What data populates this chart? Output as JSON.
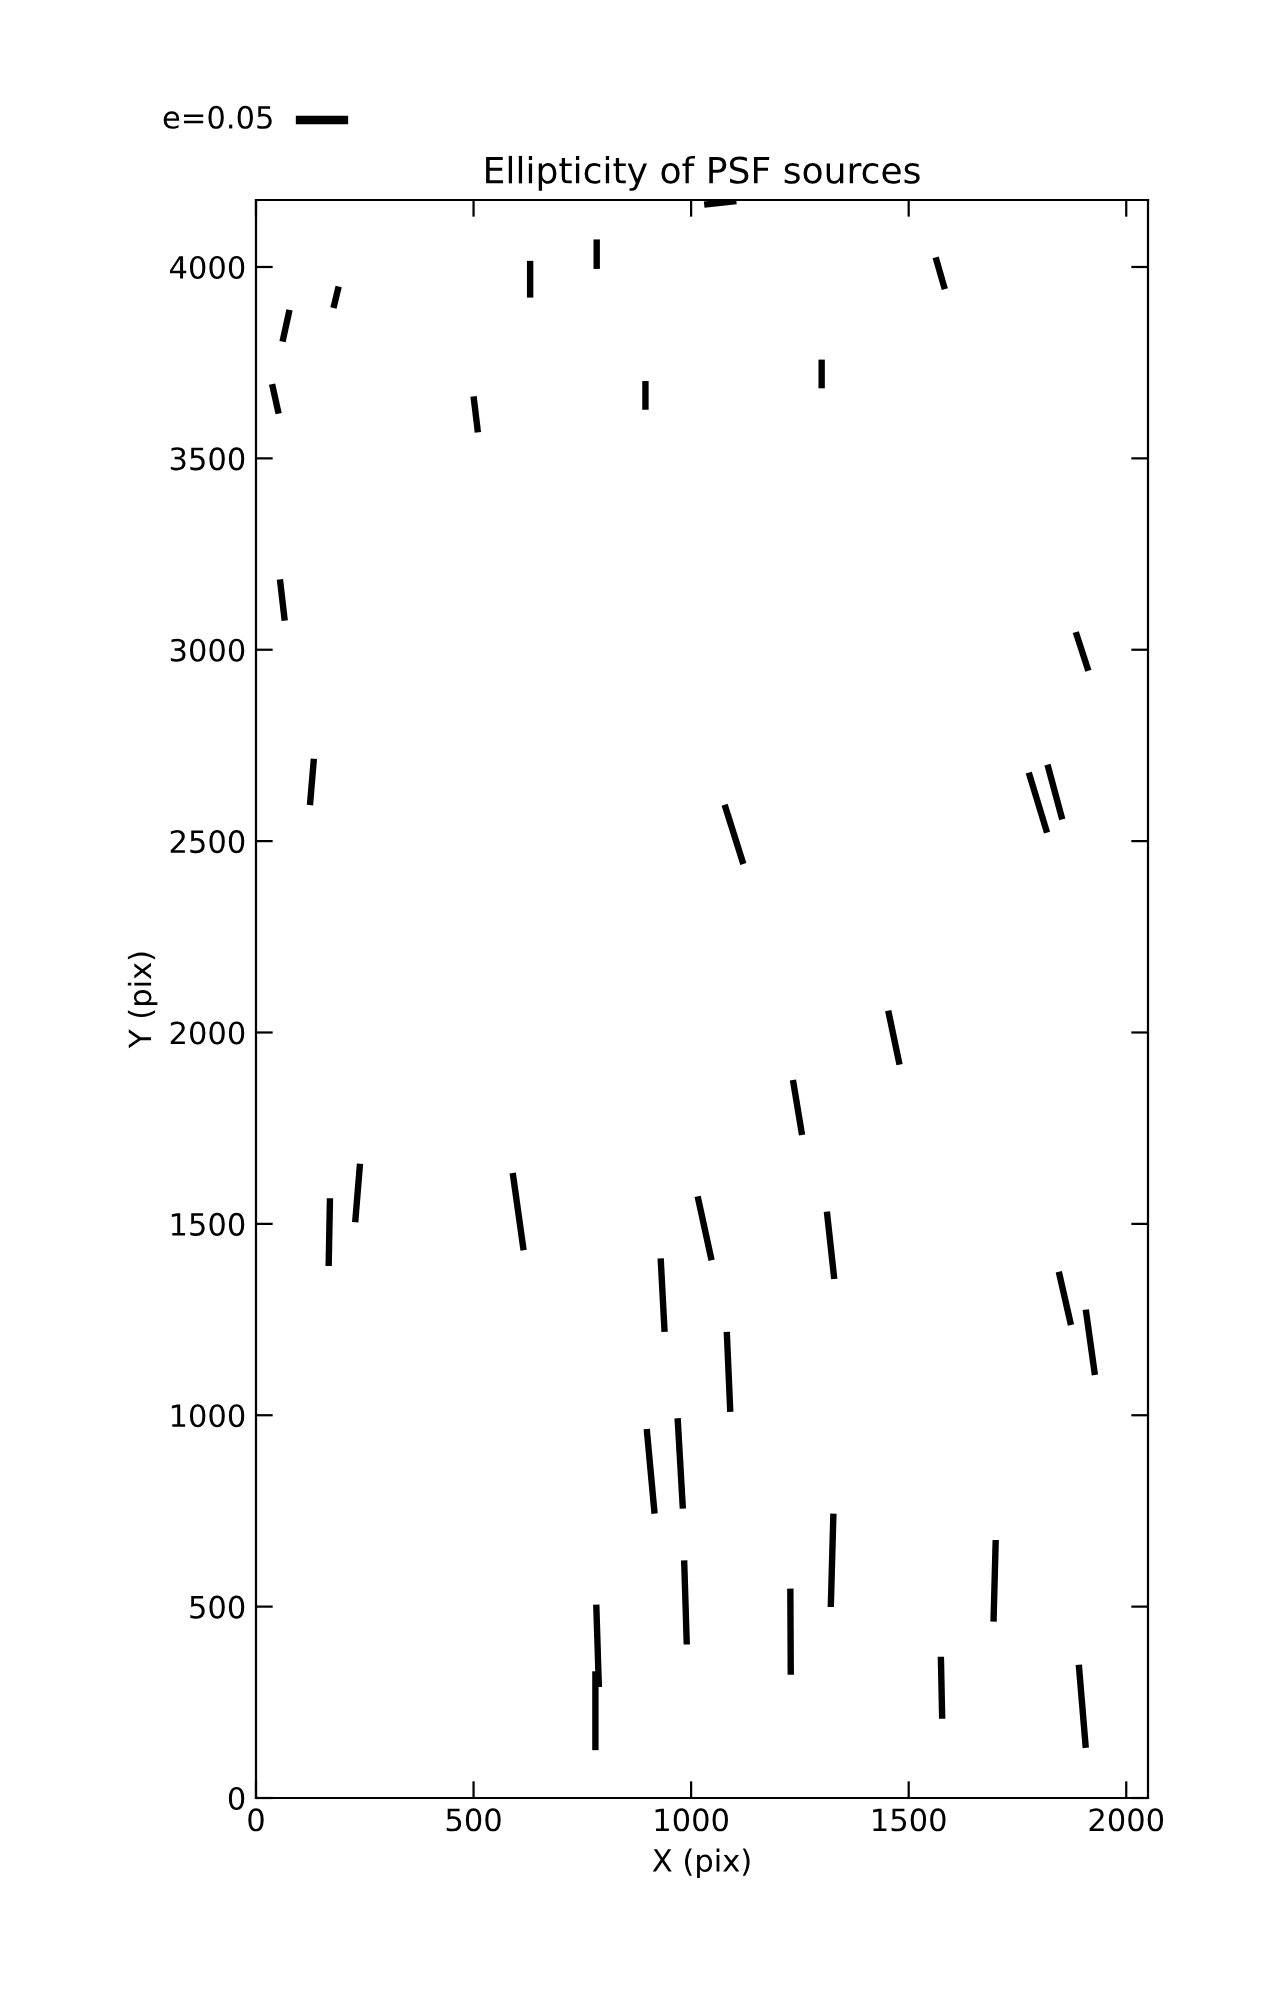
{
  "chart_data": {
    "type": "line",
    "title": "Ellipticity of PSF sources",
    "xlabel": "X (pix)",
    "ylabel": "Y (pix)",
    "annotations": [
      "e=0.05"
    ],
    "xlim": [
      0,
      2050
    ],
    "xticks": [
      0,
      500,
      1000,
      1500,
      2000
    ],
    "ylim": [
      0,
      4175
    ],
    "yticks": [
      0,
      500,
      1000,
      1500,
      2000,
      2500,
      3000,
      3500,
      4000
    ],
    "grid": false,
    "legend": false,
    "marker": "none",
    "line_style": "solid",
    "series": [
      {
        "color": "#000000",
        "x": [
          1562,
          1583
        ],
        "values": [
          4025,
          3942
        ]
      },
      {
        "color": "#000000",
        "x": [
          630,
          630
        ],
        "values": [
          4016,
          3920
        ]
      },
      {
        "color": "#000000",
        "x": [
          783,
          783
        ],
        "values": [
          4072,
          3995
        ]
      },
      {
        "color": "#000000",
        "x": [
          190,
          178
        ],
        "values": [
          3949,
          3893
        ]
      },
      {
        "color": "#000000",
        "x": [
          77,
          61
        ],
        "values": [
          3888,
          3805
        ]
      },
      {
        "color": "#000000",
        "x": [
          37,
          52
        ],
        "values": [
          3694,
          3617
        ]
      },
      {
        "color": "#000000",
        "x": [
          500,
          510
        ],
        "values": [
          3662,
          3568
        ]
      },
      {
        "color": "#000000",
        "x": [
          895,
          895
        ],
        "values": [
          3702,
          3627
        ]
      },
      {
        "color": "#000000",
        "x": [
          1300,
          1300
        ],
        "values": [
          3758,
          3683
        ]
      },
      {
        "color": "#000000",
        "x": [
          1030,
          1104
        ],
        "values": [
          4163,
          4172
        ]
      },
      {
        "color": "#000000",
        "x": [
          55,
          66
        ],
        "values": [
          3184,
          3076
        ]
      },
      {
        "color": "#000000",
        "x": [
          1884,
          1913
        ],
        "values": [
          3046,
          2945
        ]
      },
      {
        "color": "#000000",
        "x": [
          133,
          124
        ],
        "values": [
          2715,
          2594
        ]
      },
      {
        "color": "#000000",
        "x": [
          1077,
          1120
        ],
        "values": [
          2595,
          2440
        ]
      },
      {
        "color": "#000000",
        "x": [
          1776,
          1818
        ],
        "values": [
          2679,
          2522
        ]
      },
      {
        "color": "#000000",
        "x": [
          1819,
          1853
        ],
        "values": [
          2700,
          2557
        ]
      },
      {
        "color": "#000000",
        "x": [
          170,
          167
        ],
        "values": [
          1567,
          1390
        ]
      },
      {
        "color": "#000000",
        "x": [
          239,
          228
        ],
        "values": [
          1657,
          1504
        ]
      },
      {
        "color": "#000000",
        "x": [
          590,
          615
        ],
        "values": [
          1633,
          1431
        ]
      },
      {
        "color": "#000000",
        "x": [
          930,
          939
        ],
        "values": [
          1410,
          1218
        ]
      },
      {
        "color": "#000000",
        "x": [
          1015,
          1047
        ],
        "values": [
          1572,
          1405
        ]
      },
      {
        "color": "#000000",
        "x": [
          1234,
          1255
        ],
        "values": [
          1876,
          1732
        ]
      },
      {
        "color": "#000000",
        "x": [
          1312,
          1329
        ],
        "values": [
          1532,
          1356
        ]
      },
      {
        "color": "#000000",
        "x": [
          1453,
          1479
        ],
        "values": [
          2057,
          1916
        ]
      },
      {
        "color": "#000000",
        "x": [
          1845,
          1873
        ],
        "values": [
          1375,
          1236
        ]
      },
      {
        "color": "#000000",
        "x": [
          1907,
          1928
        ],
        "values": [
          1276,
          1105
        ]
      },
      {
        "color": "#000000",
        "x": [
          1082,
          1090
        ],
        "values": [
          1218,
          1009
        ]
      },
      {
        "color": "#000000",
        "x": [
          898,
          916
        ],
        "values": [
          964,
          743
        ]
      },
      {
        "color": "#000000",
        "x": [
          969,
          981
        ],
        "values": [
          992,
          756
        ]
      },
      {
        "color": "#000000",
        "x": [
          984,
          990
        ],
        "values": [
          621,
          401
        ]
      },
      {
        "color": "#000000",
        "x": [
          782,
          788
        ],
        "values": [
          505,
          290
        ]
      },
      {
        "color": "#000000",
        "x": [
          780,
          780
        ],
        "values": [
          331,
          125
        ]
      },
      {
        "color": "#000000",
        "x": [
          1228,
          1229
        ],
        "values": [
          547,
          322
        ]
      },
      {
        "color": "#000000",
        "x": [
          1327,
          1321
        ],
        "values": [
          743,
          499
        ]
      },
      {
        "color": "#000000",
        "x": [
          1574,
          1577
        ],
        "values": [
          369,
          207
        ]
      },
      {
        "color": "#000000",
        "x": [
          1700,
          1695
        ],
        "values": [
          674,
          461
        ]
      },
      {
        "color": "#000000",
        "x": [
          1891,
          1907
        ],
        "values": [
          348,
          131
        ]
      }
    ]
  }
}
